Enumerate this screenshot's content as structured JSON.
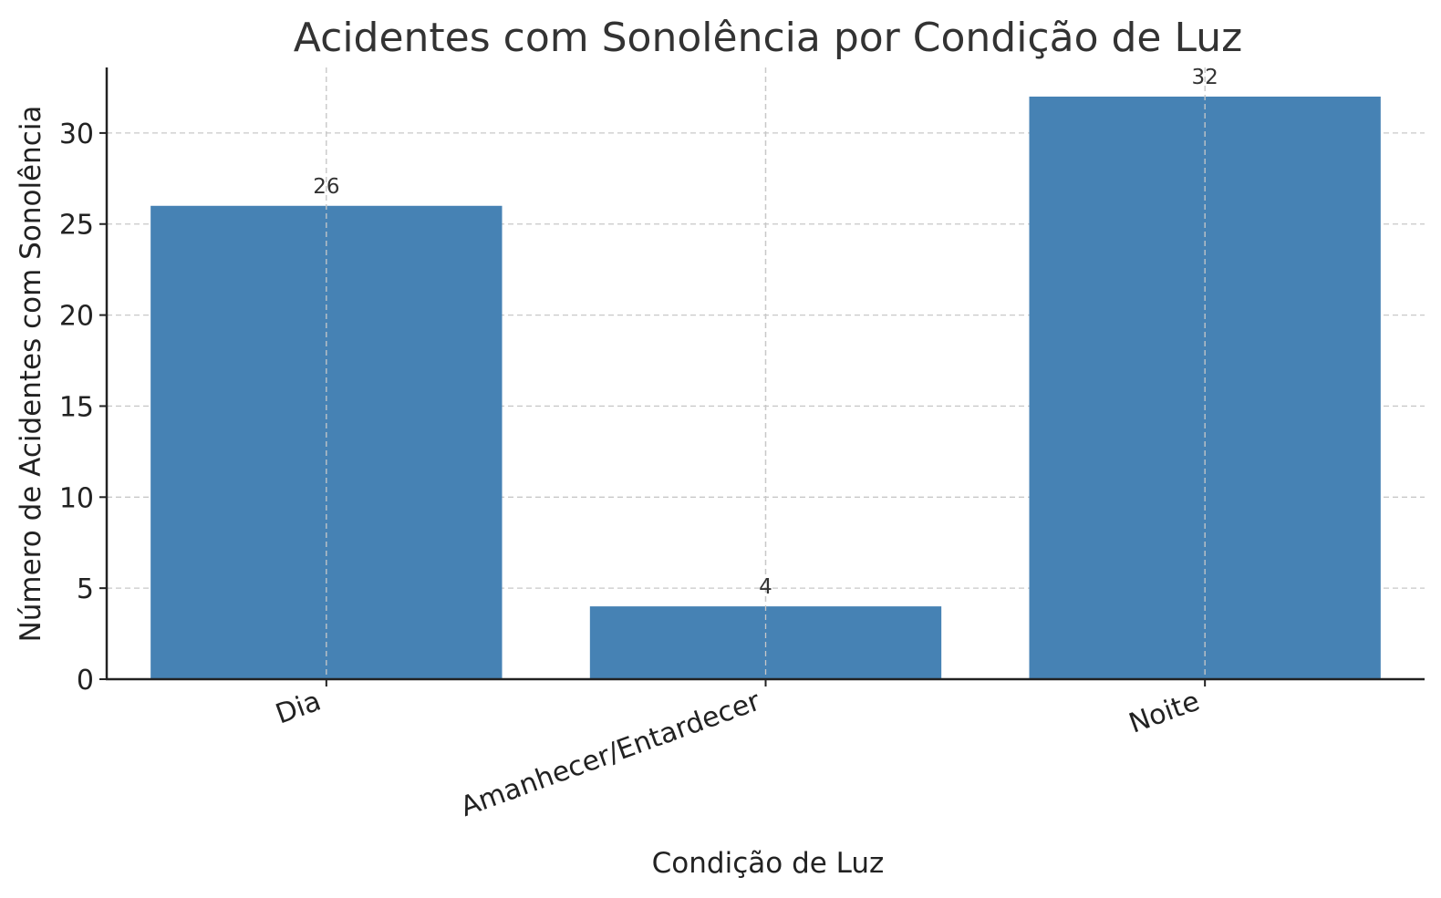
{
  "chart_data": {
    "type": "bar",
    "title": "Acidentes com Sonolência por Condição de Luz",
    "xlabel": "Condição de Luz",
    "ylabel": "Número de Acidentes com Sonolência",
    "categories": [
      "Dia",
      "Amanhecer/Entardecer",
      "Noite"
    ],
    "values": [
      26,
      4,
      32
    ],
    "data_labels": [
      "26",
      "4",
      "32"
    ],
    "ylim": [
      0,
      33.6
    ],
    "yticks": [
      0,
      5,
      10,
      15,
      20,
      25,
      30
    ],
    "ytick_labels": [
      "0",
      "5",
      "10",
      "15",
      "20",
      "25",
      "30"
    ],
    "grid": true,
    "bar_color": "#4682b4",
    "x_tick_rotation_deg": -20
  }
}
